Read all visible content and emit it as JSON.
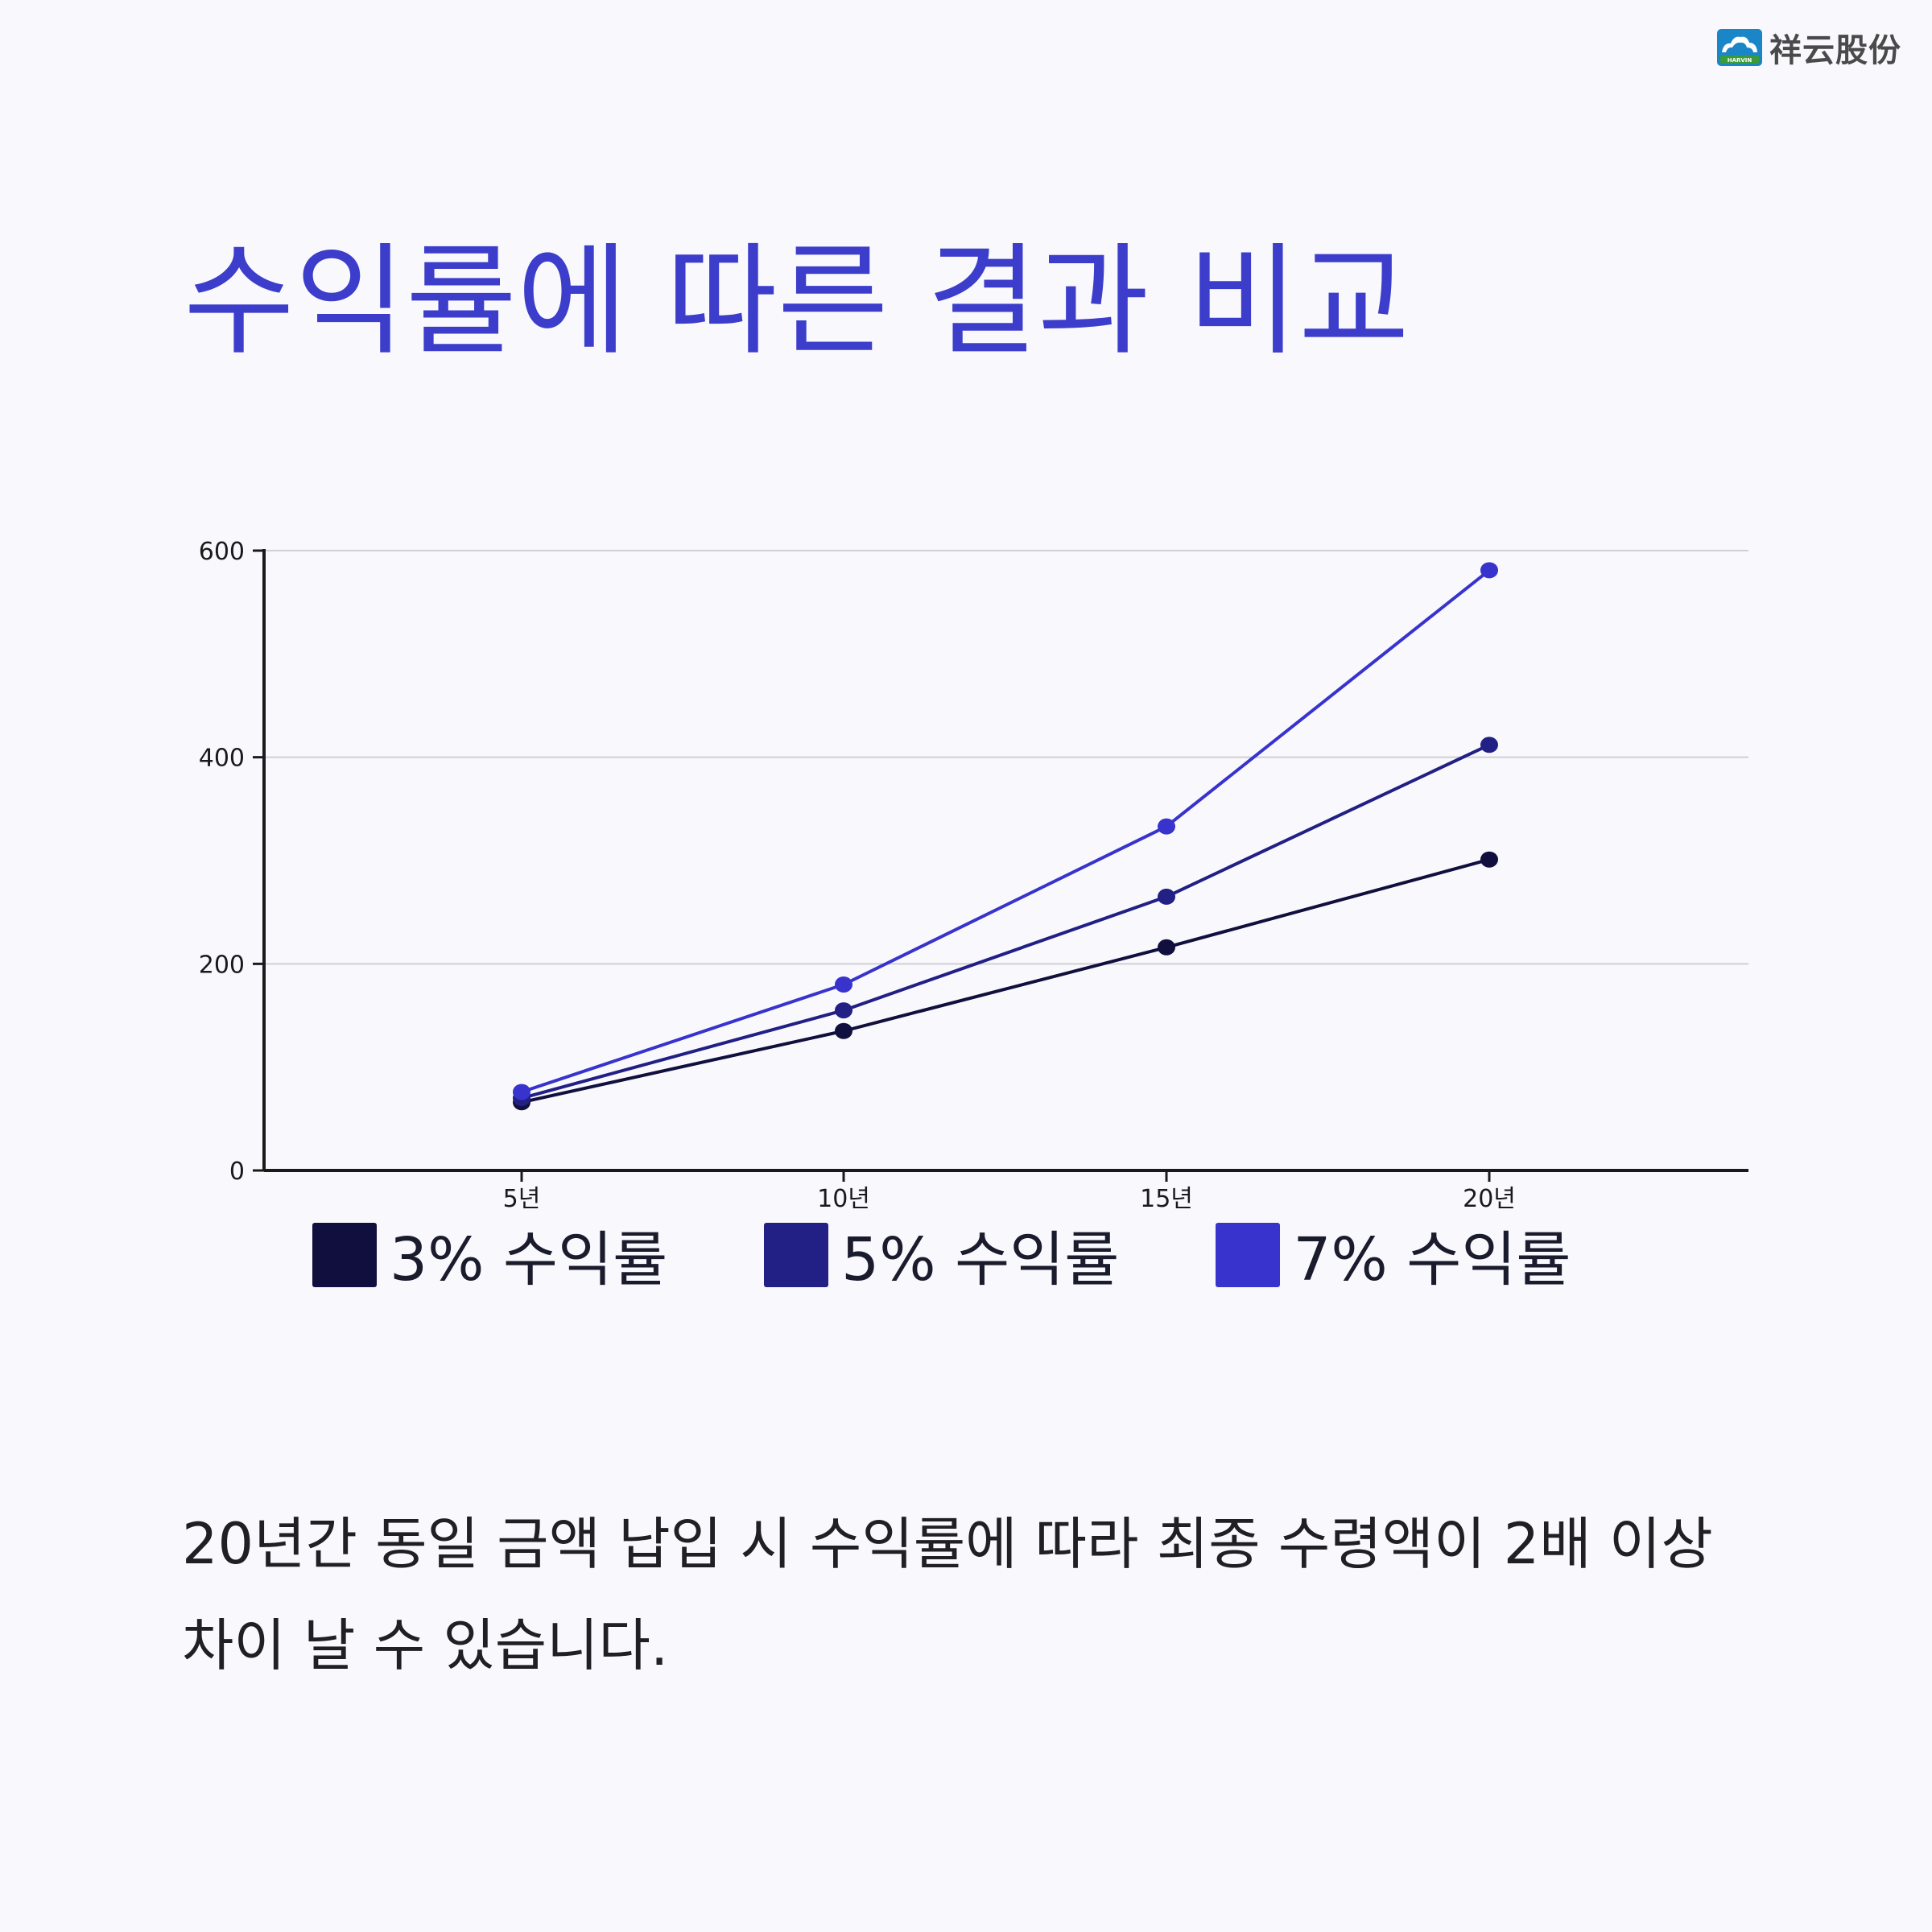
{
  "brand": {
    "logo_text": "祥云股份",
    "logo_badge_text": "HARVIN"
  },
  "title": "수익률에 따른 결과 비교",
  "colors": {
    "title": "#3d3dcc",
    "background": "#f9f9fd",
    "grid": "#cfcfd6",
    "axis": "#1a1a1a"
  },
  "chart_data": {
    "type": "line",
    "categories": [
      "5년",
      "10년",
      "15년",
      "20년"
    ],
    "series": [
      {
        "name": "3% 수익률",
        "values": [
          66,
          135,
          216,
          301
        ],
        "color": "#110f3d"
      },
      {
        "name": "5% 수익률",
        "values": [
          70,
          155,
          265,
          412
        ],
        "color": "#221f85"
      },
      {
        "name": "7% 수익률",
        "values": [
          76,
          180,
          333,
          581
        ],
        "color": "#3833cc"
      }
    ],
    "ylim": [
      0,
      600
    ],
    "yticks": [
      0,
      200,
      400,
      600
    ],
    "grid": true,
    "legend_position": "bottom"
  },
  "caption": "20년간 동일 금액 납입 시 수익률에 따라 최종 수령액이 2배 이상 차이 날 수 있습니다."
}
